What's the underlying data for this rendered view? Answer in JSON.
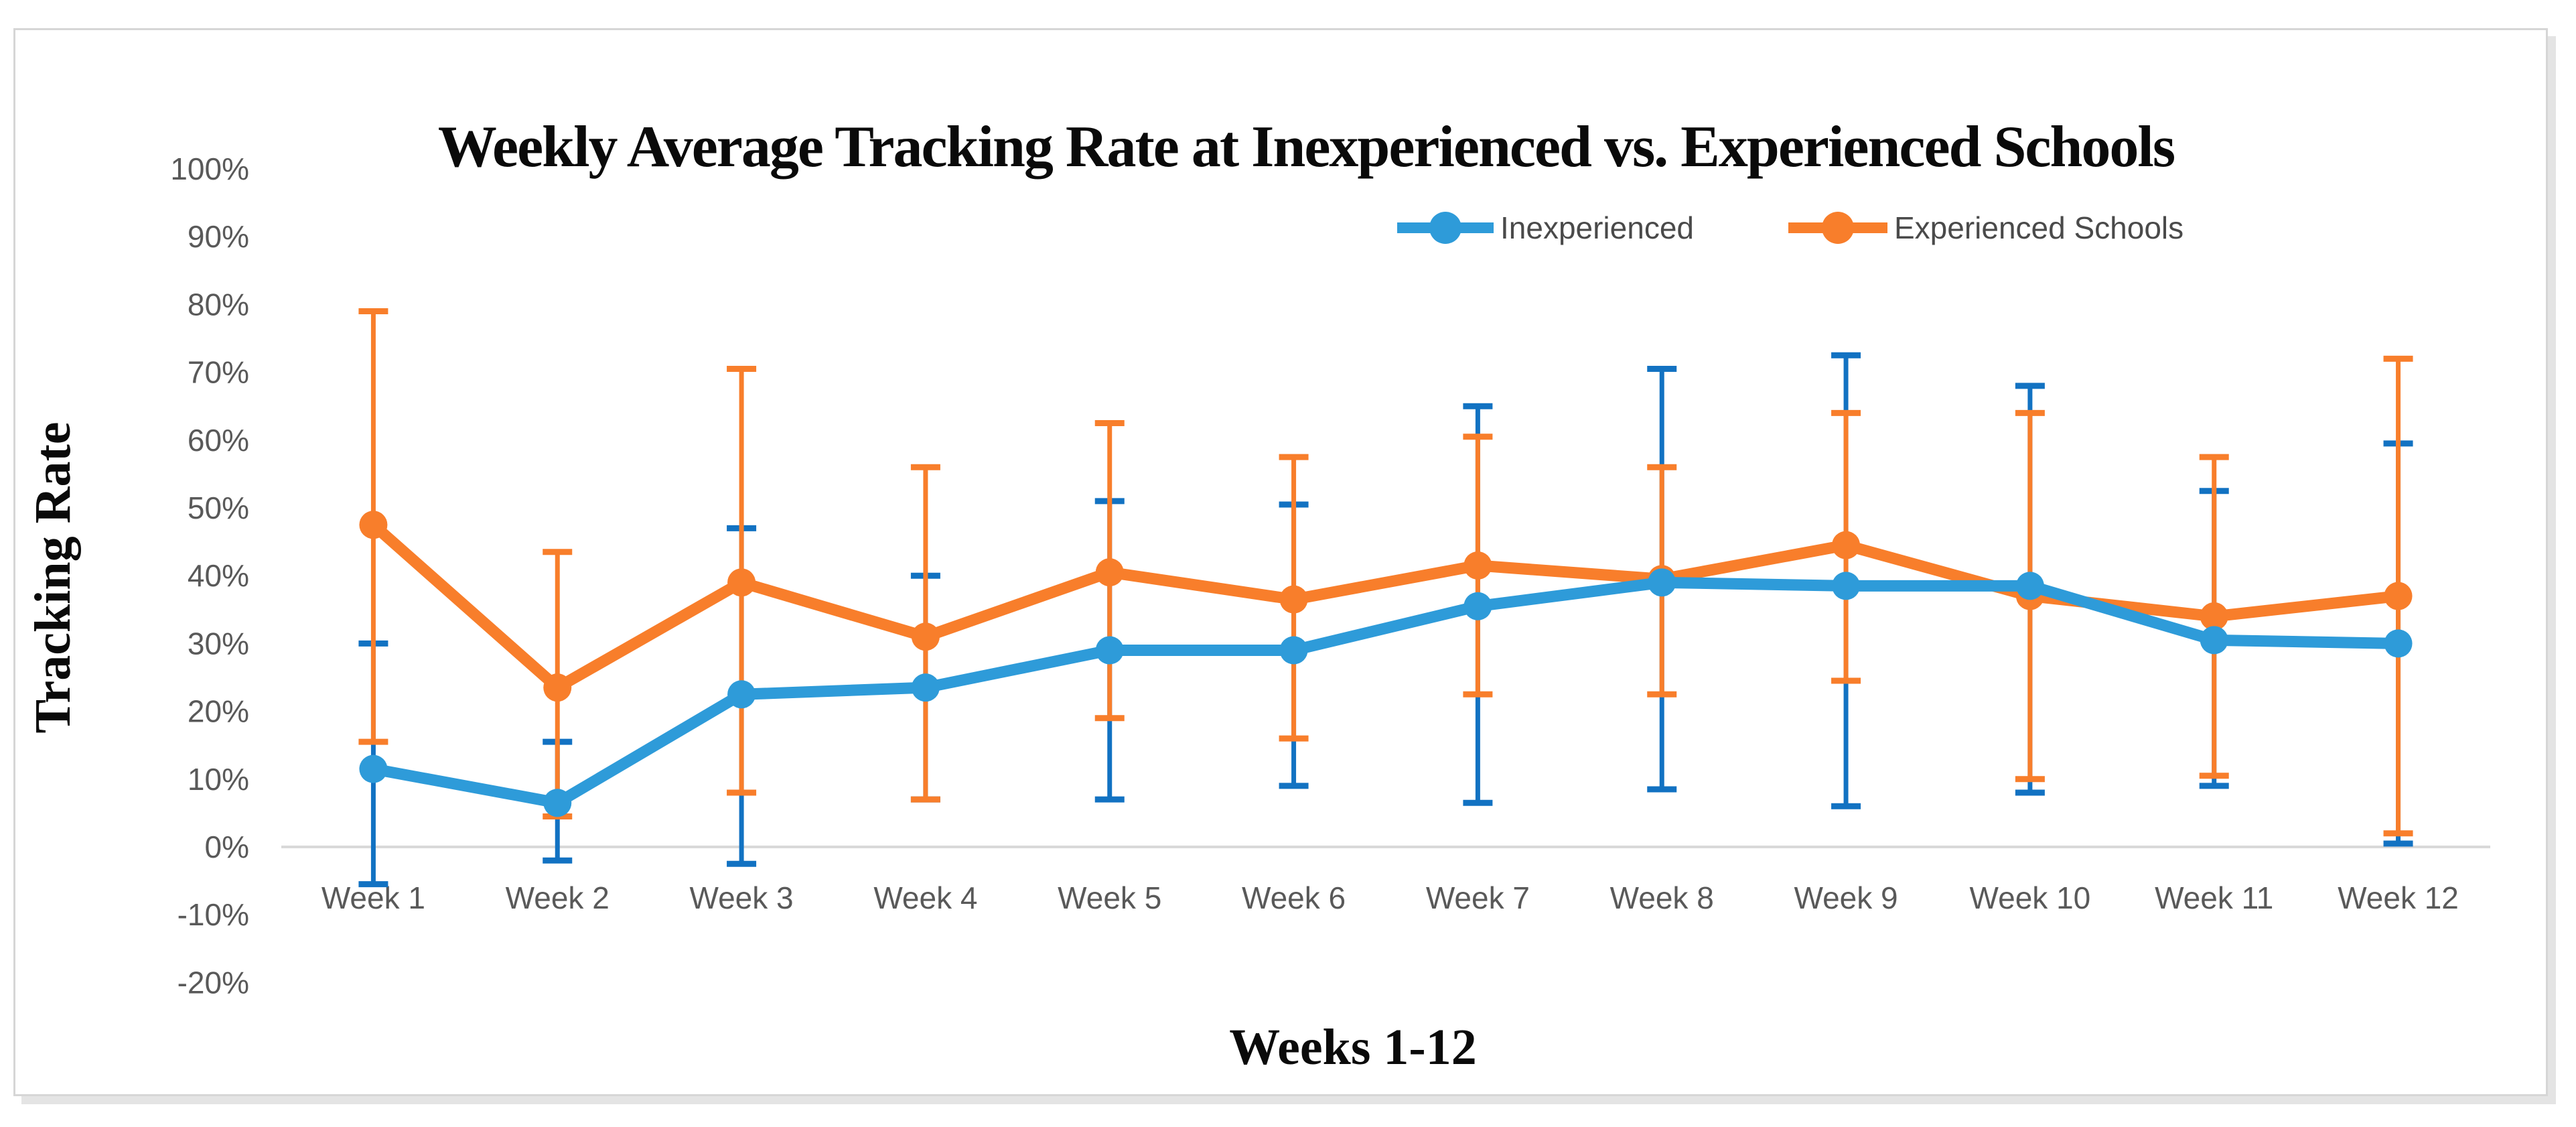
{
  "page": {
    "background": "#ffffff",
    "card_border": "#d6d6d6",
    "card_shadow": "#e4e4e4"
  },
  "chart_data": {
    "type": "line",
    "title": "Weekly Average Tracking Rate at Inexperienced vs. Experienced Schools",
    "xlabel": "Weeks 1-12",
    "ylabel": "Tracking Rate",
    "categories": [
      "Week 1",
      "Week 2",
      "Week 3",
      "Week 4",
      "Week 5",
      "Week 6",
      "Week 7",
      "Week 8",
      "Week 9",
      "Week 10",
      "Week 11",
      "Week 12"
    ],
    "y_axis": {
      "min": -20,
      "max": 100,
      "step": 10,
      "unit": "%",
      "tick_labels": [
        "100%",
        "90%",
        "80%",
        "70%",
        "60%",
        "50%",
        "40%",
        "30%",
        "20%",
        "10%",
        "0%",
        "-10%",
        "-20%"
      ]
    },
    "grid": "none",
    "baseline_value": 0,
    "legend_position": "top-right",
    "markers": "circle",
    "error_bars": true,
    "series": [
      {
        "name": "Inexperienced",
        "color": "#2E9BD9",
        "error_color": "#1272C2",
        "values": [
          11.5,
          6.5,
          22.5,
          23.5,
          29,
          29,
          35.5,
          39,
          38.5,
          38.5,
          30.5,
          30
        ],
        "error_low": [
          -5.5,
          -2,
          -2.5,
          7,
          7,
          9,
          6.5,
          8.5,
          6,
          8,
          9,
          0.5
        ],
        "error_high": [
          30,
          15.5,
          47,
          40,
          51,
          50.5,
          65,
          70.5,
          72.5,
          68,
          52.5,
          59.5
        ]
      },
      {
        "name": "Experienced Schools",
        "color": "#F87E2B",
        "error_color": "#F87E2B",
        "values": [
          47.5,
          23.5,
          39,
          31,
          40.5,
          36.5,
          41.5,
          39.5,
          44.5,
          37,
          34,
          37
        ],
        "error_low": [
          15.5,
          4.5,
          8,
          7,
          19,
          16,
          22.5,
          22.5,
          24.5,
          10,
          10.5,
          2
        ],
        "error_high": [
          79,
          43.5,
          70.5,
          56,
          62.5,
          57.5,
          60.5,
          56,
          64,
          64,
          57.5,
          72
        ]
      }
    ],
    "axis_colors": {
      "tick_text": "#595959",
      "baseline": "#D9D9D9",
      "title_text": "#000000"
    }
  }
}
